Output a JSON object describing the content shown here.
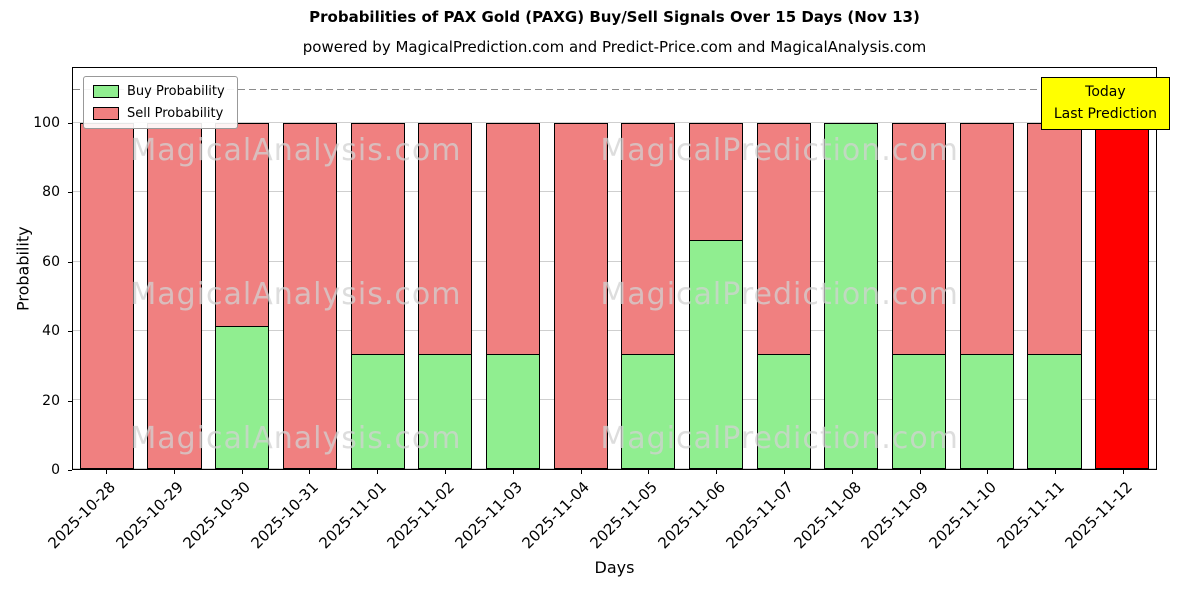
{
  "chart_data": {
    "type": "bar",
    "stacked": true,
    "title": "Probabilities of PAX Gold (PAXG) Buy/Sell Signals Over 15 Days (Nov 13)",
    "subtitle": "powered by MagicalPrediction.com and Predict-Price.com and MagicalAnalysis.com",
    "xlabel": "Days",
    "ylabel": "Probability",
    "ylim": [
      0,
      116
    ],
    "yticks": [
      0,
      20,
      40,
      60,
      80,
      100
    ],
    "grid": true,
    "dashed_line_y": 110,
    "legend_position": "upper left",
    "bar_edge_color": "#000000",
    "categories": [
      "2025-10-28",
      "2025-10-29",
      "2025-10-30",
      "2025-10-31",
      "2025-11-01",
      "2025-11-02",
      "2025-11-03",
      "2025-11-04",
      "2025-11-05",
      "2025-11-06",
      "2025-11-07",
      "2025-11-08",
      "2025-11-09",
      "2025-11-10",
      "2025-11-11",
      "2025-11-12"
    ],
    "series": [
      {
        "name": "Buy Probability",
        "color": "#90ee90",
        "values": [
          0,
          0,
          41,
          0,
          33,
          33,
          33,
          0,
          33,
          66,
          33,
          100,
          33,
          33,
          33,
          0
        ]
      },
      {
        "name": "Sell Probability",
        "color": "#f08080",
        "values": [
          100,
          100,
          59,
          100,
          67,
          67,
          67,
          100,
          67,
          34,
          67,
          0,
          67,
          67,
          67,
          100
        ]
      }
    ],
    "today_bar": {
      "index": 15,
      "color": "#ff0000",
      "total": 100
    }
  },
  "annotation_box": {
    "line1": "Today",
    "line2": "Last Prediction",
    "bg_color": "#ffff00",
    "border_color": "#000000"
  },
  "watermarks": {
    "left": "MagicalAnalysis.com",
    "right": "MagicalPrediction.com"
  }
}
